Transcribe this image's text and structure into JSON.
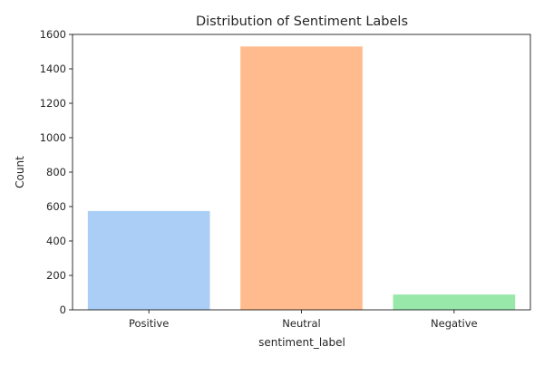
{
  "chart_data": {
    "type": "bar",
    "title": "Distribution of Sentiment Labels",
    "xlabel": "sentiment_label",
    "ylabel": "Count",
    "categories": [
      "Positive",
      "Neutral",
      "Negative"
    ],
    "values": [
      574,
      1530,
      89
    ],
    "colors": [
      "#a1c9f4",
      "#ffb482",
      "#8de5a1"
    ],
    "bar_opacity": 0.9,
    "ylim": [
      0,
      1600
    ],
    "yticks": [
      0,
      200,
      400,
      600,
      800,
      1000,
      1200,
      1400,
      1600
    ],
    "grid": false,
    "legend": false
  }
}
